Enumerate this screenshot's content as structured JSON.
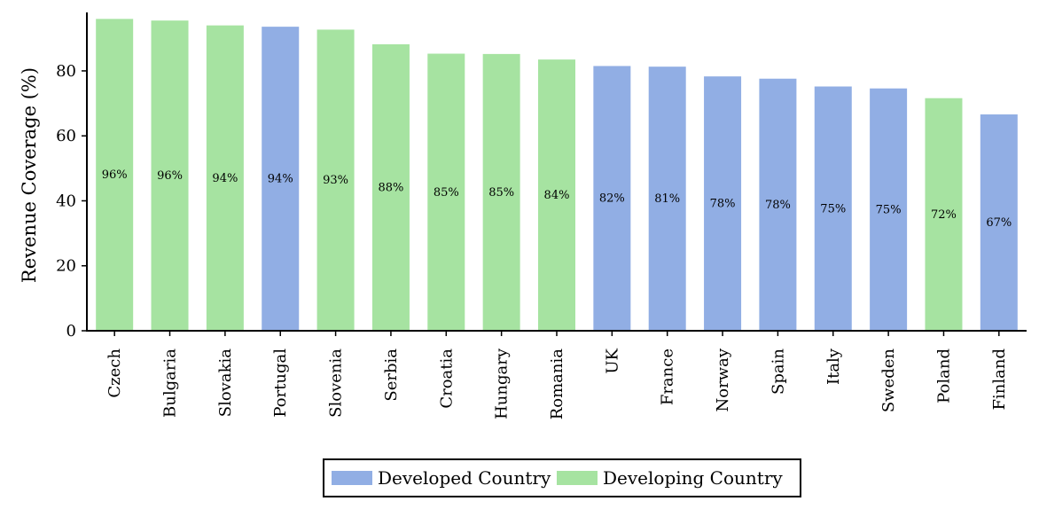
{
  "chart_data": {
    "type": "bar",
    "ylabel": "Revenue Coverage (%)",
    "xlabel": "",
    "ylim": [
      0,
      98
    ],
    "yticks": [
      0,
      20,
      40,
      60,
      80
    ],
    "categories": [
      "Czech",
      "Bulgaria",
      "Slovakia",
      "Portugal",
      "Slovenia",
      "Serbia",
      "Croatia",
      "Hungary",
      "Romania",
      "UK",
      "France",
      "Norway",
      "Spain",
      "Italy",
      "Sweden",
      "Poland",
      "Finland"
    ],
    "values": [
      96,
      95.5,
      94,
      93.6,
      92.7,
      88.2,
      85.3,
      85.2,
      83.5,
      81.5,
      81.3,
      78.3,
      77.6,
      75.2,
      74.6,
      71.6,
      66.6
    ],
    "labels": [
      "96%",
      "96%",
      "94%",
      "94%",
      "93%",
      "88%",
      "85%",
      "85%",
      "84%",
      "82%",
      "81%",
      "78%",
      "78%",
      "75%",
      "75%",
      "72%",
      "67%"
    ],
    "groups": [
      "Developing Country",
      "Developing Country",
      "Developing Country",
      "Developed Country",
      "Developing Country",
      "Developing Country",
      "Developing Country",
      "Developing Country",
      "Developing Country",
      "Developed Country",
      "Developed Country",
      "Developed Country",
      "Developed Country",
      "Developed Country",
      "Developed Country",
      "Developing Country",
      "Developed Country"
    ],
    "legend": [
      {
        "name": "Developed Country",
        "color": "#91aee4"
      },
      {
        "name": "Developing Country",
        "color": "#a6e3a1"
      }
    ],
    "legend_position": "bottom-center",
    "grid": false
  }
}
